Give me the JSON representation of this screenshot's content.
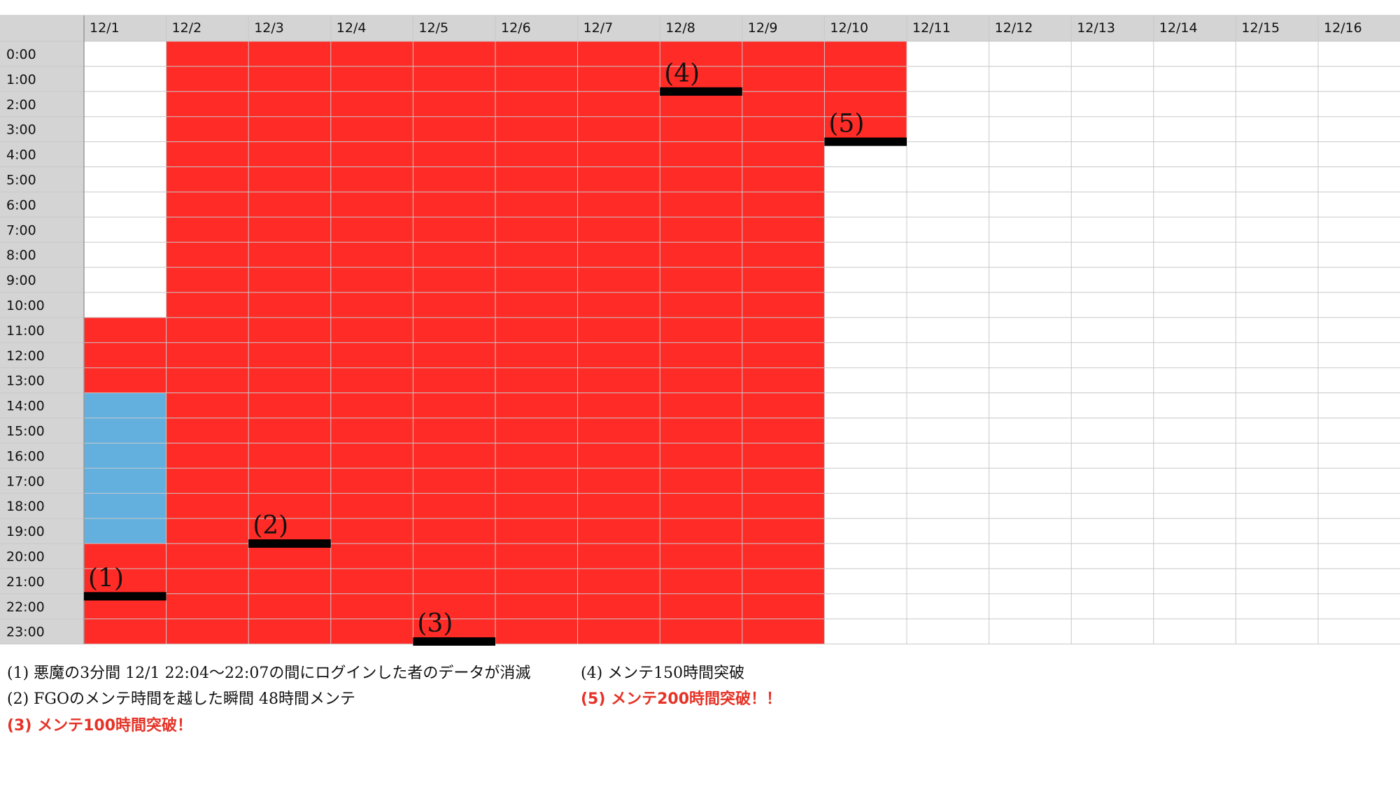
{
  "colors": {
    "maintenance": "#ff2b26",
    "window": "#63b0df",
    "marker": "#000000",
    "header_bg": "#d4d4d4",
    "grid_line": "#c8c8c8",
    "highlight_note": "#e53327"
  },
  "chart_data": {
    "type": "heatmap",
    "title": "",
    "x_categories": [
      "12/1",
      "12/2",
      "12/3",
      "12/4",
      "12/5",
      "12/6",
      "12/7",
      "12/8",
      "12/9",
      "12/10",
      "12/11",
      "12/12",
      "12/13",
      "12/14",
      "12/15",
      "12/16"
    ],
    "y_categories": [
      "0:00",
      "1:00",
      "2:00",
      "3:00",
      "4:00",
      "5:00",
      "6:00",
      "7:00",
      "8:00",
      "9:00",
      "10:00",
      "11:00",
      "12:00",
      "13:00",
      "14:00",
      "15:00",
      "16:00",
      "17:00",
      "18:00",
      "19:00",
      "20:00",
      "21:00",
      "22:00",
      "23:00"
    ],
    "filled_ranges": [
      {
        "kind": "maintenance",
        "day": "12/1",
        "from_hour": 11,
        "to_hour": 14
      },
      {
        "kind": "window",
        "day": "12/1",
        "from_hour": 14,
        "to_hour": 20
      },
      {
        "kind": "maintenance",
        "day": "12/1",
        "from_hour": 20,
        "to_hour": 24
      },
      {
        "kind": "maintenance",
        "day_from": "12/2",
        "day_to": "12/9",
        "from_hour": 0,
        "to_hour": 24
      },
      {
        "kind": "maintenance",
        "day": "12/10",
        "from_hour": 0,
        "to_hour": 4
      }
    ],
    "markers": [
      {
        "label": "(1)",
        "day": "12/1",
        "hour": 22.1
      },
      {
        "label": "(2)",
        "day": "12/3",
        "hour": 20
      },
      {
        "label": "(3)",
        "day": "12/5",
        "hour": 23.9
      },
      {
        "label": "(4)",
        "day": "12/8",
        "hour": 2
      },
      {
        "label": "(5)",
        "day": "12/10",
        "hour": 4
      }
    ]
  },
  "notes": [
    {
      "text": "(1) 悪魔の3分間  12/1 22:04〜22:07の間にログインした者のデータが消滅",
      "highlight": false
    },
    {
      "text": "(2) FGOのメンテ時間を越した瞬間  48時間メンテ",
      "highlight": false
    },
    {
      "text": "(3) メンテ100時間突破！",
      "highlight": true
    },
    {
      "text": "(4) メンテ150時間突破",
      "highlight": false
    },
    {
      "text": "(5) メンテ200時間突破！！",
      "highlight": true
    }
  ]
}
